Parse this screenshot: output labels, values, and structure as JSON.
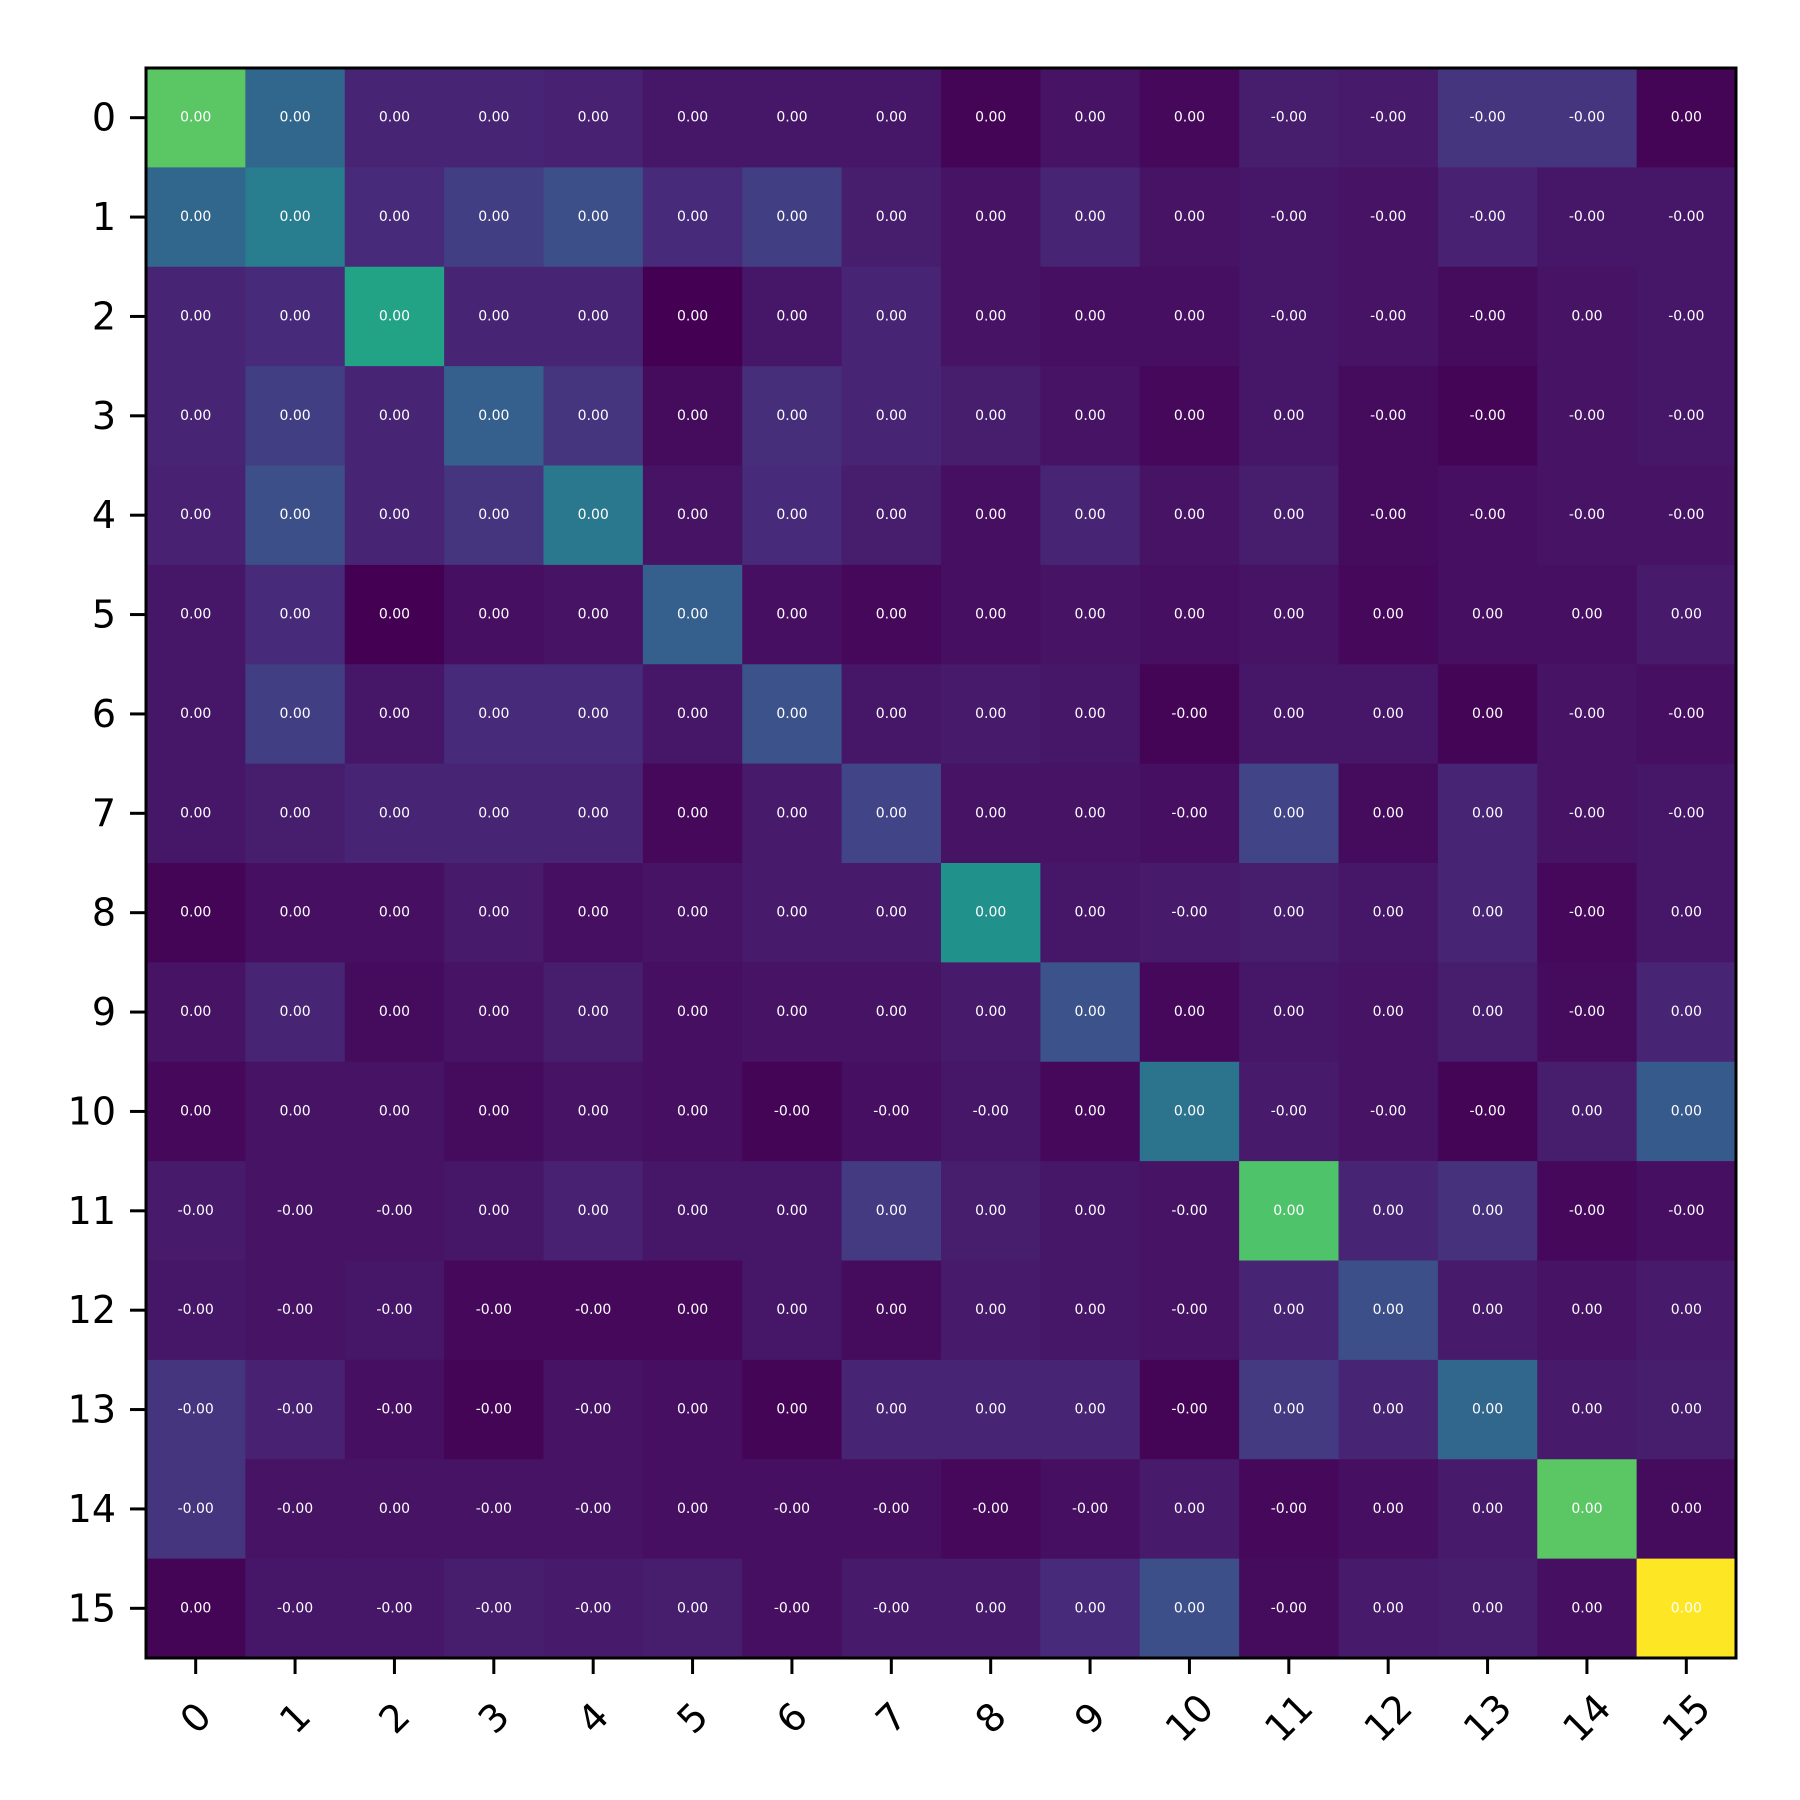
{
  "chart_data": {
    "type": "heatmap",
    "title": "",
    "xlabel": "",
    "ylabel": "",
    "x_ticks": [
      "0",
      "1",
      "2",
      "3",
      "4",
      "5",
      "6",
      "7",
      "8",
      "9",
      "10",
      "11",
      "12",
      "13",
      "14",
      "15"
    ],
    "y_ticks": [
      "0",
      "1",
      "2",
      "3",
      "4",
      "5",
      "6",
      "7",
      "8",
      "9",
      "10",
      "11",
      "12",
      "13",
      "14",
      "15"
    ],
    "colormap": "viridis",
    "color_intensity_scale": [
      0,
      1
    ],
    "cell_labels": [
      [
        "0.00",
        "0.00",
        "0.00",
        "0.00",
        "0.00",
        "0.00",
        "0.00",
        "0.00",
        "0.00",
        "0.00",
        "0.00",
        "-0.00",
        "-0.00",
        "-0.00",
        "-0.00",
        "0.00"
      ],
      [
        "0.00",
        "0.00",
        "0.00",
        "0.00",
        "0.00",
        "0.00",
        "0.00",
        "0.00",
        "0.00",
        "0.00",
        "0.00",
        "-0.00",
        "-0.00",
        "-0.00",
        "-0.00",
        "-0.00"
      ],
      [
        "0.00",
        "0.00",
        "0.00",
        "0.00",
        "0.00",
        "0.00",
        "0.00",
        "0.00",
        "0.00",
        "0.00",
        "0.00",
        "-0.00",
        "-0.00",
        "-0.00",
        "0.00",
        "-0.00"
      ],
      [
        "0.00",
        "0.00",
        "0.00",
        "0.00",
        "0.00",
        "0.00",
        "0.00",
        "0.00",
        "0.00",
        "0.00",
        "0.00",
        "0.00",
        "-0.00",
        "-0.00",
        "-0.00",
        "-0.00"
      ],
      [
        "0.00",
        "0.00",
        "0.00",
        "0.00",
        "0.00",
        "0.00",
        "0.00",
        "0.00",
        "0.00",
        "0.00",
        "0.00",
        "0.00",
        "-0.00",
        "-0.00",
        "-0.00",
        "-0.00"
      ],
      [
        "0.00",
        "0.00",
        "0.00",
        "0.00",
        "0.00",
        "0.00",
        "0.00",
        "0.00",
        "0.00",
        "0.00",
        "0.00",
        "0.00",
        "0.00",
        "0.00",
        "0.00",
        "0.00"
      ],
      [
        "0.00",
        "0.00",
        "0.00",
        "0.00",
        "0.00",
        "0.00",
        "0.00",
        "0.00",
        "0.00",
        "0.00",
        "-0.00",
        "0.00",
        "0.00",
        "0.00",
        "-0.00",
        "-0.00"
      ],
      [
        "0.00",
        "0.00",
        "0.00",
        "0.00",
        "0.00",
        "0.00",
        "0.00",
        "0.00",
        "0.00",
        "0.00",
        "-0.00",
        "0.00",
        "0.00",
        "0.00",
        "-0.00",
        "-0.00"
      ],
      [
        "0.00",
        "0.00",
        "0.00",
        "0.00",
        "0.00",
        "0.00",
        "0.00",
        "0.00",
        "0.00",
        "0.00",
        "-0.00",
        "0.00",
        "0.00",
        "0.00",
        "-0.00",
        "0.00"
      ],
      [
        "0.00",
        "0.00",
        "0.00",
        "0.00",
        "0.00",
        "0.00",
        "0.00",
        "0.00",
        "0.00",
        "0.00",
        "0.00",
        "0.00",
        "0.00",
        "0.00",
        "-0.00",
        "0.00"
      ],
      [
        "0.00",
        "0.00",
        "0.00",
        "0.00",
        "0.00",
        "0.00",
        "-0.00",
        "-0.00",
        "-0.00",
        "0.00",
        "0.00",
        "-0.00",
        "-0.00",
        "-0.00",
        "0.00",
        "0.00"
      ],
      [
        "-0.00",
        "-0.00",
        "-0.00",
        "0.00",
        "0.00",
        "0.00",
        "0.00",
        "0.00",
        "0.00",
        "0.00",
        "-0.00",
        "0.00",
        "0.00",
        "0.00",
        "-0.00",
        "-0.00"
      ],
      [
        "-0.00",
        "-0.00",
        "-0.00",
        "-0.00",
        "-0.00",
        "0.00",
        "0.00",
        "0.00",
        "0.00",
        "0.00",
        "-0.00",
        "0.00",
        "0.00",
        "0.00",
        "0.00",
        "0.00"
      ],
      [
        "-0.00",
        "-0.00",
        "-0.00",
        "-0.00",
        "-0.00",
        "0.00",
        "0.00",
        "0.00",
        "0.00",
        "0.00",
        "-0.00",
        "0.00",
        "0.00",
        "0.00",
        "0.00",
        "0.00"
      ],
      [
        "-0.00",
        "-0.00",
        "0.00",
        "-0.00",
        "-0.00",
        "0.00",
        "-0.00",
        "-0.00",
        "-0.00",
        "-0.00",
        "0.00",
        "-0.00",
        "0.00",
        "0.00",
        "0.00",
        "0.00"
      ],
      [
        "0.00",
        "-0.00",
        "-0.00",
        "-0.00",
        "-0.00",
        "0.00",
        "-0.00",
        "-0.00",
        "0.00",
        "0.00",
        "0.00",
        "-0.00",
        "0.00",
        "0.00",
        "0.00",
        "0.00"
      ]
    ],
    "color_intensity": [
      [
        0.74,
        0.33,
        0.1,
        0.1,
        0.09,
        0.06,
        0.06,
        0.06,
        0.01,
        0.05,
        0.02,
        0.08,
        0.07,
        0.15,
        0.15,
        0.01
      ],
      [
        0.33,
        0.42,
        0.12,
        0.18,
        0.24,
        0.12,
        0.18,
        0.08,
        0.05,
        0.1,
        0.05,
        0.06,
        0.05,
        0.09,
        0.06,
        0.06
      ],
      [
        0.1,
        0.12,
        0.58,
        0.1,
        0.1,
        0.0,
        0.06,
        0.1,
        0.05,
        0.04,
        0.04,
        0.06,
        0.05,
        0.03,
        0.05,
        0.06
      ],
      [
        0.1,
        0.18,
        0.1,
        0.3,
        0.15,
        0.03,
        0.13,
        0.1,
        0.08,
        0.05,
        0.02,
        0.06,
        0.03,
        0.01,
        0.05,
        0.06
      ],
      [
        0.09,
        0.24,
        0.1,
        0.15,
        0.4,
        0.05,
        0.12,
        0.08,
        0.04,
        0.1,
        0.05,
        0.08,
        0.03,
        0.04,
        0.05,
        0.05
      ],
      [
        0.06,
        0.12,
        0.0,
        0.04,
        0.05,
        0.3,
        0.04,
        0.02,
        0.04,
        0.05,
        0.04,
        0.05,
        0.02,
        0.04,
        0.04,
        0.07
      ],
      [
        0.06,
        0.18,
        0.06,
        0.12,
        0.12,
        0.06,
        0.25,
        0.06,
        0.07,
        0.06,
        0.01,
        0.06,
        0.06,
        0.01,
        0.05,
        0.04
      ],
      [
        0.06,
        0.08,
        0.1,
        0.1,
        0.1,
        0.02,
        0.07,
        0.2,
        0.05,
        0.05,
        0.04,
        0.2,
        0.03,
        0.1,
        0.05,
        0.06
      ],
      [
        0.01,
        0.04,
        0.04,
        0.07,
        0.04,
        0.05,
        0.07,
        0.07,
        0.5,
        0.06,
        0.07,
        0.08,
        0.06,
        0.1,
        0.02,
        0.06
      ],
      [
        0.05,
        0.1,
        0.03,
        0.05,
        0.08,
        0.04,
        0.05,
        0.05,
        0.07,
        0.25,
        0.02,
        0.06,
        0.05,
        0.08,
        0.03,
        0.1
      ],
      [
        0.02,
        0.05,
        0.05,
        0.03,
        0.05,
        0.04,
        0.01,
        0.04,
        0.06,
        0.02,
        0.38,
        0.07,
        0.05,
        0.01,
        0.08,
        0.28
      ],
      [
        0.07,
        0.05,
        0.05,
        0.06,
        0.09,
        0.06,
        0.06,
        0.17,
        0.08,
        0.06,
        0.05,
        0.72,
        0.1,
        0.14,
        0.02,
        0.04
      ],
      [
        0.06,
        0.05,
        0.06,
        0.02,
        0.02,
        0.02,
        0.06,
        0.03,
        0.07,
        0.06,
        0.05,
        0.1,
        0.24,
        0.07,
        0.05,
        0.07
      ],
      [
        0.15,
        0.09,
        0.04,
        0.01,
        0.05,
        0.04,
        0.01,
        0.1,
        0.1,
        0.1,
        0.01,
        0.17,
        0.1,
        0.33,
        0.07,
        0.08
      ],
      [
        0.15,
        0.05,
        0.05,
        0.05,
        0.05,
        0.04,
        0.04,
        0.04,
        0.02,
        0.04,
        0.07,
        0.02,
        0.04,
        0.07,
        0.74,
        0.03
      ],
      [
        0.01,
        0.06,
        0.06,
        0.08,
        0.07,
        0.08,
        0.04,
        0.07,
        0.07,
        0.12,
        0.24,
        0.03,
        0.07,
        0.08,
        0.04,
        1.0
      ]
    ]
  }
}
